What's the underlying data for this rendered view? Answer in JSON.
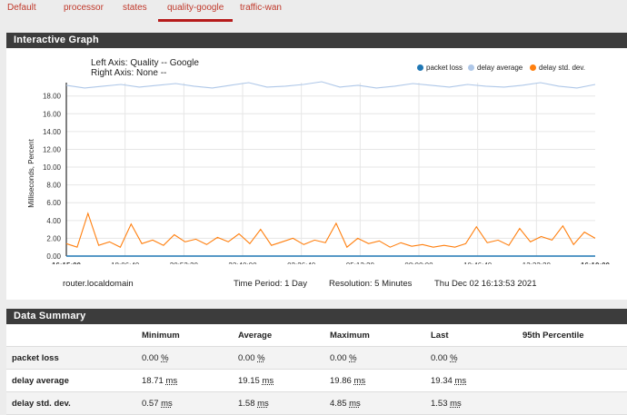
{
  "tabs": [
    "Default",
    "processor",
    "states",
    "quality-google",
    "traffic-wan"
  ],
  "graph": {
    "panel_title": "Interactive Graph",
    "left_axis": "Left Axis: Quality -- Google",
    "right_axis": "Right Axis: None --",
    "footer": {
      "host": "router.localdomain",
      "time_period": "Time Period: 1 Day",
      "resolution": "Resolution: 5 Minutes",
      "timestamp": "Thu Dec 02 16:13:53 2021"
    }
  },
  "chart_data": {
    "type": "line",
    "ylabel": "Milliseconds, Percent",
    "ylim": [
      0,
      19.5
    ],
    "yticks": [
      "0.00",
      "2.00",
      "4.00",
      "6.00",
      "8.00",
      "10.00",
      "12.00",
      "14.00",
      "16.00",
      "18.00"
    ],
    "xticks": [
      "16:15:00",
      "18:06:40",
      "20:53:20",
      "23:40:00",
      "02:26:40",
      "05:13:20",
      "08:00:00",
      "10:46:40",
      "13:33:20",
      "16:10:00"
    ],
    "legend": [
      {
        "name": "packet loss",
        "color": "#1f77b4"
      },
      {
        "name": "delay average",
        "color": "#aec7e8"
      },
      {
        "name": "delay std. dev.",
        "color": "#ff7f0e"
      }
    ],
    "series": [
      {
        "name": "packet loss",
        "color": "#1f77b4",
        "values": [
          0.0,
          0.0,
          0.0,
          0.0,
          0.0,
          0.0,
          0.0,
          0.0,
          0.0,
          0.0
        ]
      },
      {
        "name": "delay average",
        "color": "#aec7e8",
        "values": [
          19.2,
          18.9,
          19.1,
          19.3,
          19.0,
          19.2,
          19.4,
          19.1,
          18.9,
          19.2,
          19.5,
          19.0,
          19.1,
          19.3,
          19.6,
          19.0,
          19.2,
          18.9,
          19.1,
          19.4,
          19.2,
          19.0,
          19.3,
          19.1,
          19.0,
          19.2,
          19.5,
          19.1,
          18.9,
          19.3
        ]
      },
      {
        "name": "delay std. dev.",
        "color": "#ff7f0e",
        "values": [
          1.4,
          1.0,
          4.8,
          1.2,
          1.6,
          1.0,
          3.6,
          1.4,
          1.8,
          1.2,
          2.4,
          1.6,
          1.9,
          1.3,
          2.1,
          1.6,
          2.5,
          1.4,
          3.0,
          1.2,
          1.6,
          2.0,
          1.3,
          1.8,
          1.5,
          3.7,
          1.0,
          2.0,
          1.4,
          1.7,
          1.0,
          1.5,
          1.1,
          1.3,
          1.0,
          1.2,
          1.0,
          1.4,
          3.3,
          1.5,
          1.8,
          1.2,
          3.1,
          1.6,
          2.2,
          1.8,
          3.4,
          1.3,
          2.7,
          2.0
        ]
      }
    ]
  },
  "summary": {
    "panel_title": "Data Summary",
    "columns": [
      "",
      "Minimum",
      "Average",
      "Maximum",
      "Last",
      "95th Percentile"
    ],
    "rows": [
      {
        "label": "packet loss",
        "values": [
          [
            "0.00",
            "%"
          ],
          [
            "0.00",
            "%"
          ],
          [
            "0.00",
            "%"
          ],
          [
            "0.00",
            "%"
          ]
        ]
      },
      {
        "label": "delay average",
        "values": [
          [
            "18.71",
            "ms"
          ],
          [
            "19.15",
            "ms"
          ],
          [
            "19.86",
            "ms"
          ],
          [
            "19.34",
            "ms"
          ]
        ]
      },
      {
        "label": "delay std. dev.",
        "values": [
          [
            "0.57",
            "ms"
          ],
          [
            "1.58",
            "ms"
          ],
          [
            "4.85",
            "ms"
          ],
          [
            "1.53",
            "ms"
          ]
        ]
      }
    ]
  }
}
